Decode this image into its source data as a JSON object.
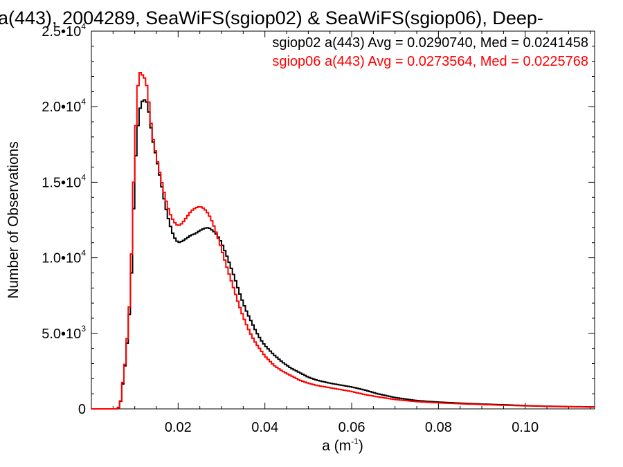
{
  "chart_data": {
    "type": "line",
    "title": "a(443), 2004289, SeaWiFS(sgiop02) & SeaWiFS(sgiop06), Deep-",
    "xlabel": "a (m",
    "xlabel_sup": "-1",
    "xlabel_close": ")",
    "ylabel": "Number of Observations",
    "xlim": [
      0.0,
      0.116
    ],
    "ylim": [
      0,
      25000
    ],
    "x_ticks": [
      {
        "value": 0.02,
        "label": "0.02"
      },
      {
        "value": 0.04,
        "label": "0.04"
      },
      {
        "value": 0.06,
        "label": "0.06"
      },
      {
        "value": 0.08,
        "label": "0.08"
      },
      {
        "value": 0.1,
        "label": "0.10"
      }
    ],
    "y_ticks": [
      {
        "value": 0,
        "mantissa": "0",
        "exp": ""
      },
      {
        "value": 5000,
        "mantissa": "5.0•10",
        "exp": "3"
      },
      {
        "value": 10000,
        "mantissa": "1.0•10",
        "exp": "4"
      },
      {
        "value": 15000,
        "mantissa": "1.5•10",
        "exp": "4"
      },
      {
        "value": 20000,
        "mantissa": "2.0•10",
        "exp": "4"
      },
      {
        "value": 25000,
        "mantissa": "2.5•10",
        "exp": "4"
      }
    ],
    "legend_position": "top-right",
    "series": [
      {
        "name": "sgiop02",
        "color": "#000000",
        "legend_text": "sgiop02 a(443) Avg = 0.0290740, Med = 0.0241458",
        "points": [
          [
            0.0,
            0
          ],
          [
            0.006,
            0
          ],
          [
            0.0065,
            200
          ],
          [
            0.007,
            800
          ],
          [
            0.0075,
            2500
          ],
          [
            0.008,
            3200
          ],
          [
            0.0085,
            5500
          ],
          [
            0.009,
            7000
          ],
          [
            0.0095,
            11000
          ],
          [
            0.01,
            15500
          ],
          [
            0.0105,
            18000
          ],
          [
            0.011,
            19500
          ],
          [
            0.0115,
            20300
          ],
          [
            0.012,
            20400
          ],
          [
            0.0125,
            20500
          ],
          [
            0.013,
            20100
          ],
          [
            0.0135,
            19200
          ],
          [
            0.014,
            18000
          ],
          [
            0.015,
            16600
          ],
          [
            0.016,
            15100
          ],
          [
            0.017,
            13500
          ],
          [
            0.018,
            12300
          ],
          [
            0.019,
            11400
          ],
          [
            0.02,
            11000
          ],
          [
            0.021,
            11100
          ],
          [
            0.022,
            11300
          ],
          [
            0.023,
            11500
          ],
          [
            0.024,
            11600
          ],
          [
            0.025,
            11800
          ],
          [
            0.026,
            11950
          ],
          [
            0.027,
            12000
          ],
          [
            0.028,
            11800
          ],
          [
            0.029,
            11500
          ],
          [
            0.03,
            11000
          ],
          [
            0.031,
            10300
          ],
          [
            0.032,
            9500
          ],
          [
            0.033,
            8700
          ],
          [
            0.034,
            7800
          ],
          [
            0.035,
            7000
          ],
          [
            0.036,
            6300
          ],
          [
            0.037,
            5700
          ],
          [
            0.038,
            5100
          ],
          [
            0.039,
            4600
          ],
          [
            0.04,
            4200
          ],
          [
            0.042,
            3600
          ],
          [
            0.044,
            3100
          ],
          [
            0.046,
            2700
          ],
          [
            0.048,
            2400
          ],
          [
            0.05,
            2100
          ],
          [
            0.052,
            1900
          ],
          [
            0.055,
            1700
          ],
          [
            0.058,
            1550
          ],
          [
            0.06,
            1450
          ],
          [
            0.063,
            1250
          ],
          [
            0.066,
            1000
          ],
          [
            0.07,
            750
          ],
          [
            0.075,
            550
          ],
          [
            0.08,
            450
          ],
          [
            0.085,
            380
          ],
          [
            0.09,
            320
          ],
          [
            0.095,
            270
          ],
          [
            0.1,
            220
          ],
          [
            0.105,
            180
          ],
          [
            0.11,
            150
          ],
          [
            0.116,
            130
          ]
        ]
      },
      {
        "name": "sgiop06",
        "color": "#ff0000",
        "legend_text": "sgiop06 a(443) Avg = 0.0273564, Med = 0.0225768",
        "points": [
          [
            0.0,
            0
          ],
          [
            0.006,
            0
          ],
          [
            0.0065,
            150
          ],
          [
            0.007,
            900
          ],
          [
            0.0075,
            2600
          ],
          [
            0.008,
            3300
          ],
          [
            0.0085,
            6000
          ],
          [
            0.009,
            7500
          ],
          [
            0.0095,
            13000
          ],
          [
            0.01,
            17000
          ],
          [
            0.0105,
            20500
          ],
          [
            0.011,
            22300
          ],
          [
            0.0115,
            22200
          ],
          [
            0.012,
            22000
          ],
          [
            0.0125,
            21800
          ],
          [
            0.013,
            21000
          ],
          [
            0.0135,
            19600
          ],
          [
            0.014,
            18200
          ],
          [
            0.015,
            16700
          ],
          [
            0.016,
            15300
          ],
          [
            0.017,
            14000
          ],
          [
            0.018,
            13000
          ],
          [
            0.019,
            12400
          ],
          [
            0.02,
            12100
          ],
          [
            0.021,
            12300
          ],
          [
            0.022,
            12700
          ],
          [
            0.023,
            13100
          ],
          [
            0.024,
            13300
          ],
          [
            0.025,
            13400
          ],
          [
            0.026,
            13250
          ],
          [
            0.027,
            12900
          ],
          [
            0.028,
            12300
          ],
          [
            0.029,
            11500
          ],
          [
            0.03,
            10600
          ],
          [
            0.031,
            9600
          ],
          [
            0.032,
            8700
          ],
          [
            0.033,
            7800
          ],
          [
            0.034,
            6900
          ],
          [
            0.035,
            6100
          ],
          [
            0.036,
            5400
          ],
          [
            0.037,
            4800
          ],
          [
            0.038,
            4300
          ],
          [
            0.039,
            3900
          ],
          [
            0.04,
            3500
          ],
          [
            0.042,
            2900
          ],
          [
            0.044,
            2500
          ],
          [
            0.046,
            2200
          ],
          [
            0.048,
            1900
          ],
          [
            0.05,
            1700
          ],
          [
            0.052,
            1550
          ],
          [
            0.055,
            1400
          ],
          [
            0.058,
            1250
          ],
          [
            0.06,
            1150
          ],
          [
            0.063,
            950
          ],
          [
            0.066,
            800
          ],
          [
            0.07,
            620
          ],
          [
            0.075,
            480
          ],
          [
            0.08,
            400
          ],
          [
            0.085,
            340
          ],
          [
            0.09,
            290
          ],
          [
            0.095,
            240
          ],
          [
            0.1,
            200
          ],
          [
            0.105,
            170
          ],
          [
            0.11,
            140
          ],
          [
            0.116,
            120
          ]
        ]
      }
    ]
  }
}
